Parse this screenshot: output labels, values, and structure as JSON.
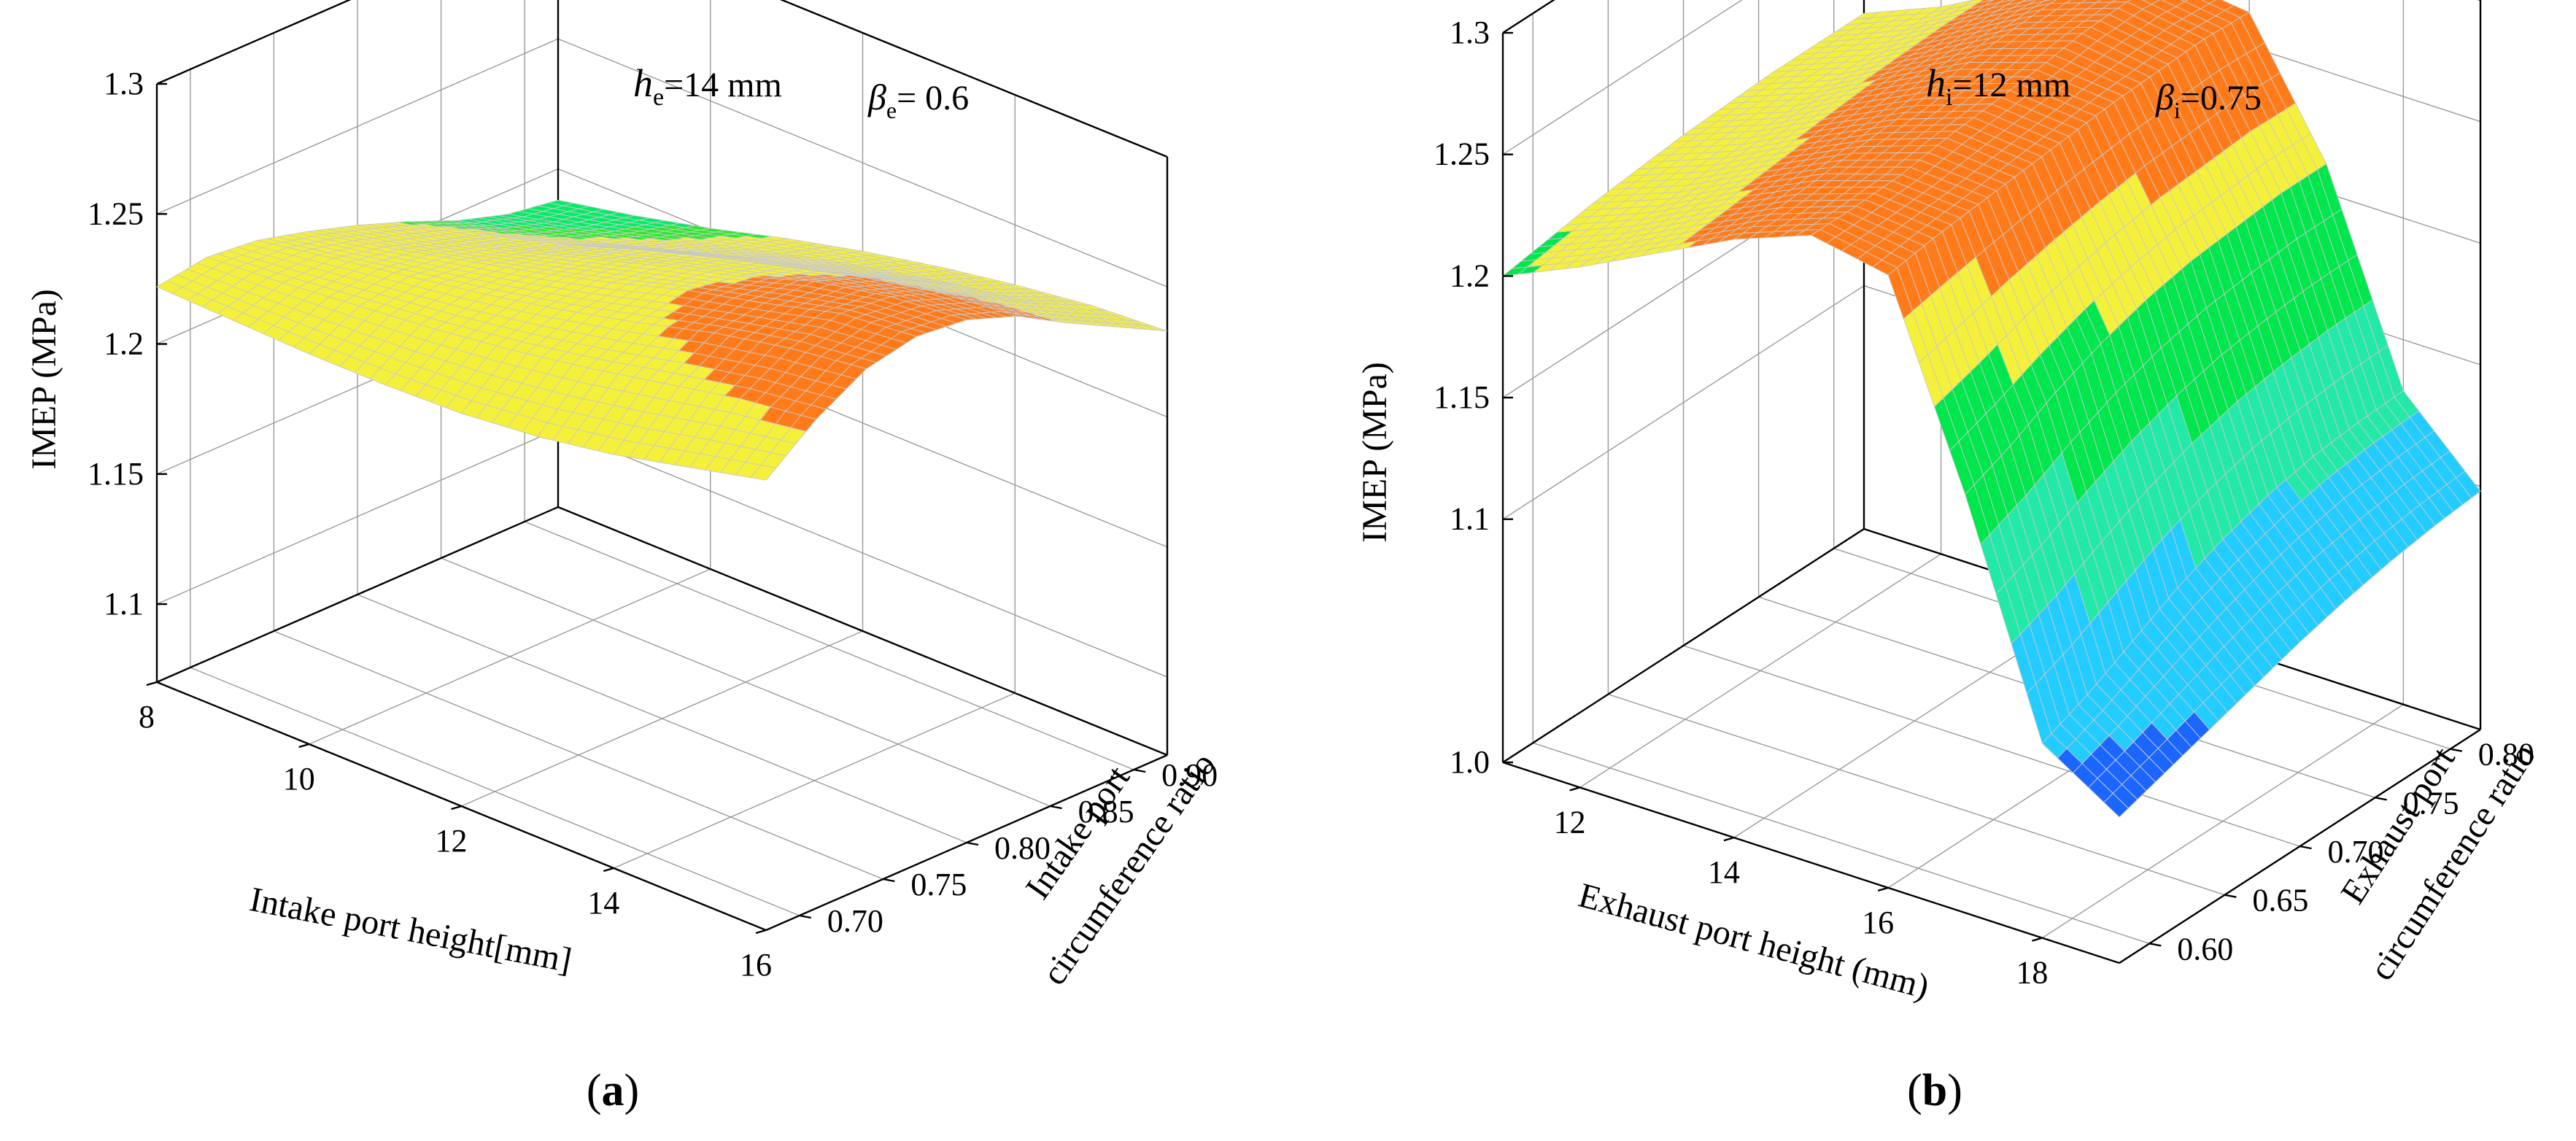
{
  "chart_data": [
    {
      "type": "surface",
      "panel_label": "a",
      "annotation_1": {
        "symbol": "h",
        "sub": "e",
        "text": "=14 mm"
      },
      "annotation_2": {
        "symbol": "β",
        "sub": "e",
        "text": "= 0.6"
      },
      "zlabel": "IMEP (MPa)",
      "xlabel": "Intake port height[mm]",
      "ylabel_line1": "Intake port",
      "ylabel_line2": "circumference ratio",
      "z_ticks": [
        "1.1",
        "1.15",
        "1.2",
        "1.25",
        "1.3"
      ],
      "x_ticks": [
        "8",
        "10",
        "12",
        "14",
        "16"
      ],
      "y_ticks": [
        "0.70",
        "0.75",
        "0.80",
        "0.85",
        "0.90"
      ],
      "x_range": [
        8,
        16
      ],
      "y_range": [
        0.68,
        0.92
      ],
      "z_range": [
        1.07,
        1.3
      ],
      "x": [
        8,
        9,
        10,
        11,
        12,
        13,
        14,
        15,
        16
      ],
      "y": [
        0.68,
        0.71,
        0.74,
        0.77,
        0.8,
        0.83,
        0.86,
        0.89,
        0.92
      ],
      "z": [
        [
          1.222,
          1.221,
          1.22,
          1.22,
          1.221,
          1.224,
          1.229,
          1.236,
          1.243
        ],
        [
          1.225,
          1.227,
          1.23,
          1.233,
          1.237,
          1.242,
          1.248,
          1.254,
          1.258
        ],
        [
          1.223,
          1.228,
          1.233,
          1.238,
          1.244,
          1.251,
          1.259,
          1.265,
          1.269
        ],
        [
          1.218,
          1.224,
          1.231,
          1.238,
          1.246,
          1.255,
          1.262,
          1.27,
          1.273
        ],
        [
          1.212,
          1.218,
          1.226,
          1.235,
          1.244,
          1.252,
          1.262,
          1.268,
          1.271
        ],
        [
          1.205,
          1.212,
          1.22,
          1.23,
          1.239,
          1.247,
          1.255,
          1.261,
          1.264
        ],
        [
          1.197,
          1.204,
          1.212,
          1.221,
          1.23,
          1.238,
          1.245,
          1.25,
          1.253
        ],
        [
          1.191,
          1.198,
          1.206,
          1.214,
          1.222,
          1.229,
          1.235,
          1.24,
          1.243
        ],
        [
          1.188,
          1.194,
          1.201,
          1.209,
          1.216,
          1.222,
          1.227,
          1.231,
          1.233
        ]
      ],
      "color_bands": [
        {
          "min": 1.0,
          "color": "#1a66ff"
        },
        {
          "min": 1.1,
          "color": "#00e6ff"
        },
        {
          "min": 1.15,
          "color": "#00ee66"
        },
        {
          "min": 1.2,
          "color": "#22ee22"
        },
        {
          "min": 1.2075,
          "color": "#f5f03a"
        },
        {
          "min": 1.254,
          "color": "#ff7b1a"
        },
        {
          "min": 1.28,
          "color": "#e8101a"
        }
      ]
    },
    {
      "type": "surface",
      "panel_label": "b",
      "annotation_1": {
        "symbol": "h",
        "sub": "i",
        "text": "=12 mm"
      },
      "annotation_2": {
        "symbol": "β",
        "sub": "i",
        "text": "=0.75"
      },
      "zlabel": "IMEP (MPa)",
      "xlabel": "Exhaust port height (mm)",
      "ylabel_line1": "Exhaust port",
      "ylabel_line2": "circumference ratio",
      "z_ticks": [
        "1.0",
        "1.1",
        "1.15",
        "1.2",
        "1.25",
        "1.3"
      ],
      "x_ticks": [
        "12",
        "14",
        "16",
        "18"
      ],
      "y_ticks": [
        "0.60",
        "0.65",
        "0.70",
        "0.75",
        "0.80"
      ],
      "x_range": [
        11,
        19
      ],
      "y_range": [
        0.58,
        0.82
      ],
      "z_range": [
        1.0,
        1.3
      ],
      "x": [
        11,
        12,
        13,
        14,
        15,
        16,
        17,
        18,
        19
      ],
      "y": [
        0.58,
        0.61,
        0.64,
        0.67,
        0.7,
        0.73,
        0.76,
        0.79,
        0.82
      ],
      "z": [
        [
          1.2,
          1.214,
          1.23,
          1.246,
          1.258,
          1.252,
          1.172,
          1.08,
          1.06
        ],
        [
          1.203,
          1.216,
          1.232,
          1.247,
          1.258,
          1.255,
          1.18,
          1.088,
          1.066
        ],
        [
          1.206,
          1.218,
          1.234,
          1.249,
          1.259,
          1.257,
          1.19,
          1.098,
          1.072
        ],
        [
          1.208,
          1.22,
          1.236,
          1.251,
          1.262,
          1.259,
          1.198,
          1.108,
          1.078
        ],
        [
          1.21,
          1.222,
          1.238,
          1.253,
          1.264,
          1.261,
          1.204,
          1.116,
          1.084
        ],
        [
          1.211,
          1.223,
          1.24,
          1.256,
          1.266,
          1.263,
          1.208,
          1.122,
          1.089
        ],
        [
          1.212,
          1.224,
          1.241,
          1.258,
          1.269,
          1.264,
          1.21,
          1.126,
          1.093
        ],
        [
          1.212,
          1.225,
          1.242,
          1.259,
          1.27,
          1.265,
          1.212,
          1.128,
          1.096
        ],
        [
          1.212,
          1.225,
          1.242,
          1.258,
          1.268,
          1.264,
          1.212,
          1.129,
          1.098
        ]
      ],
      "color_bands": [
        {
          "min": 0.9,
          "color": "#1a66ff"
        },
        {
          "min": 1.075,
          "color": "#22ccff"
        },
        {
          "min": 1.12,
          "color": "#22e8a8"
        },
        {
          "min": 1.16,
          "color": "#00e64d"
        },
        {
          "min": 1.205,
          "color": "#f5f03a"
        },
        {
          "min": 1.235,
          "color": "#ff7b1a"
        },
        {
          "min": 1.275,
          "color": "#e8101a"
        }
      ]
    }
  ]
}
